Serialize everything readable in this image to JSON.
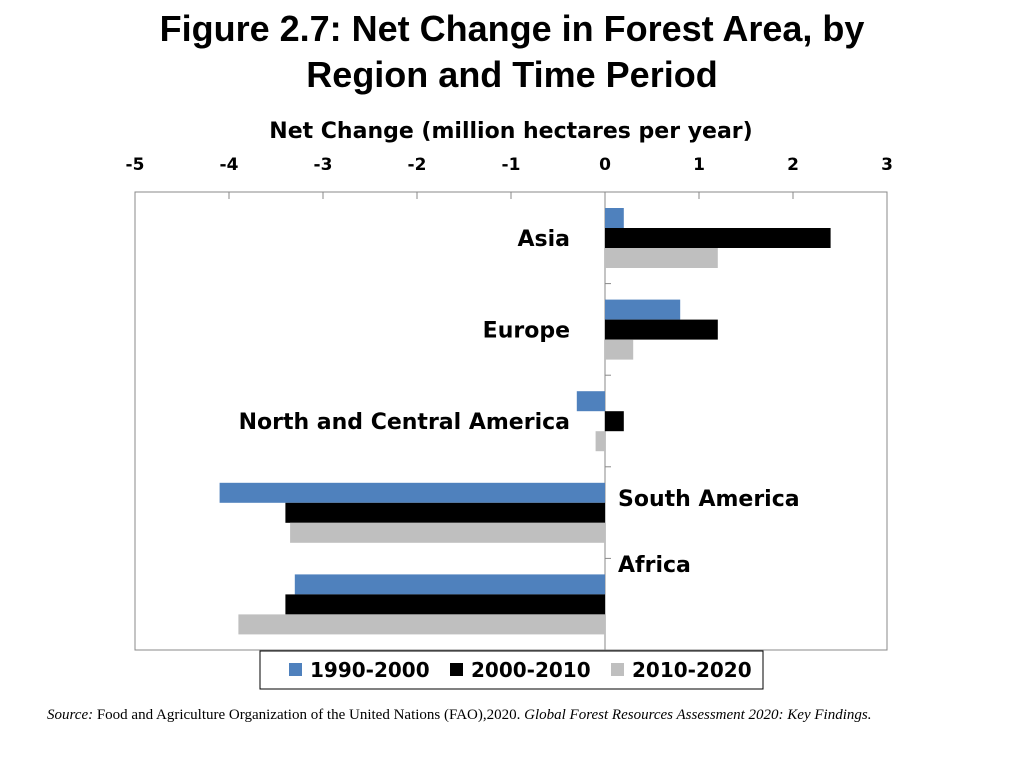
{
  "title_line1": "Figure 2.7: Net Change in Forest Area, by",
  "title_line2": "Region and Time Period",
  "source": {
    "label": "Source:",
    "text": " Food and Agriculture Organization of the United Nations (FAO),2020. ",
    "italic": "Global Forest Resources Assessment 2020: Key Findings."
  },
  "chart_data": {
    "type": "bar",
    "orientation": "horizontal",
    "xlabel": "Net Change (million hectares per year)",
    "xlim": [
      -5,
      3
    ],
    "xticks": [
      -5,
      -4,
      -3,
      -2,
      -1,
      0,
      1,
      2,
      3
    ],
    "x_axis_position": "top",
    "grid": false,
    "legend_position": "bottom",
    "categories": [
      "Asia",
      "Europe",
      "North and Central America",
      "South America",
      "Africa"
    ],
    "series": [
      {
        "name": "1990-2000",
        "color": "#4f81bd",
        "values": [
          0.2,
          0.8,
          -0.3,
          -4.1,
          -3.3
        ]
      },
      {
        "name": "2000-2010",
        "color": "#000000",
        "values": [
          2.4,
          1.2,
          0.2,
          -3.4,
          -3.4
        ]
      },
      {
        "name": "2010-2020",
        "color": "#bfbfbf",
        "values": [
          1.2,
          0.3,
          -0.1,
          -3.35,
          -3.9
        ]
      }
    ]
  }
}
